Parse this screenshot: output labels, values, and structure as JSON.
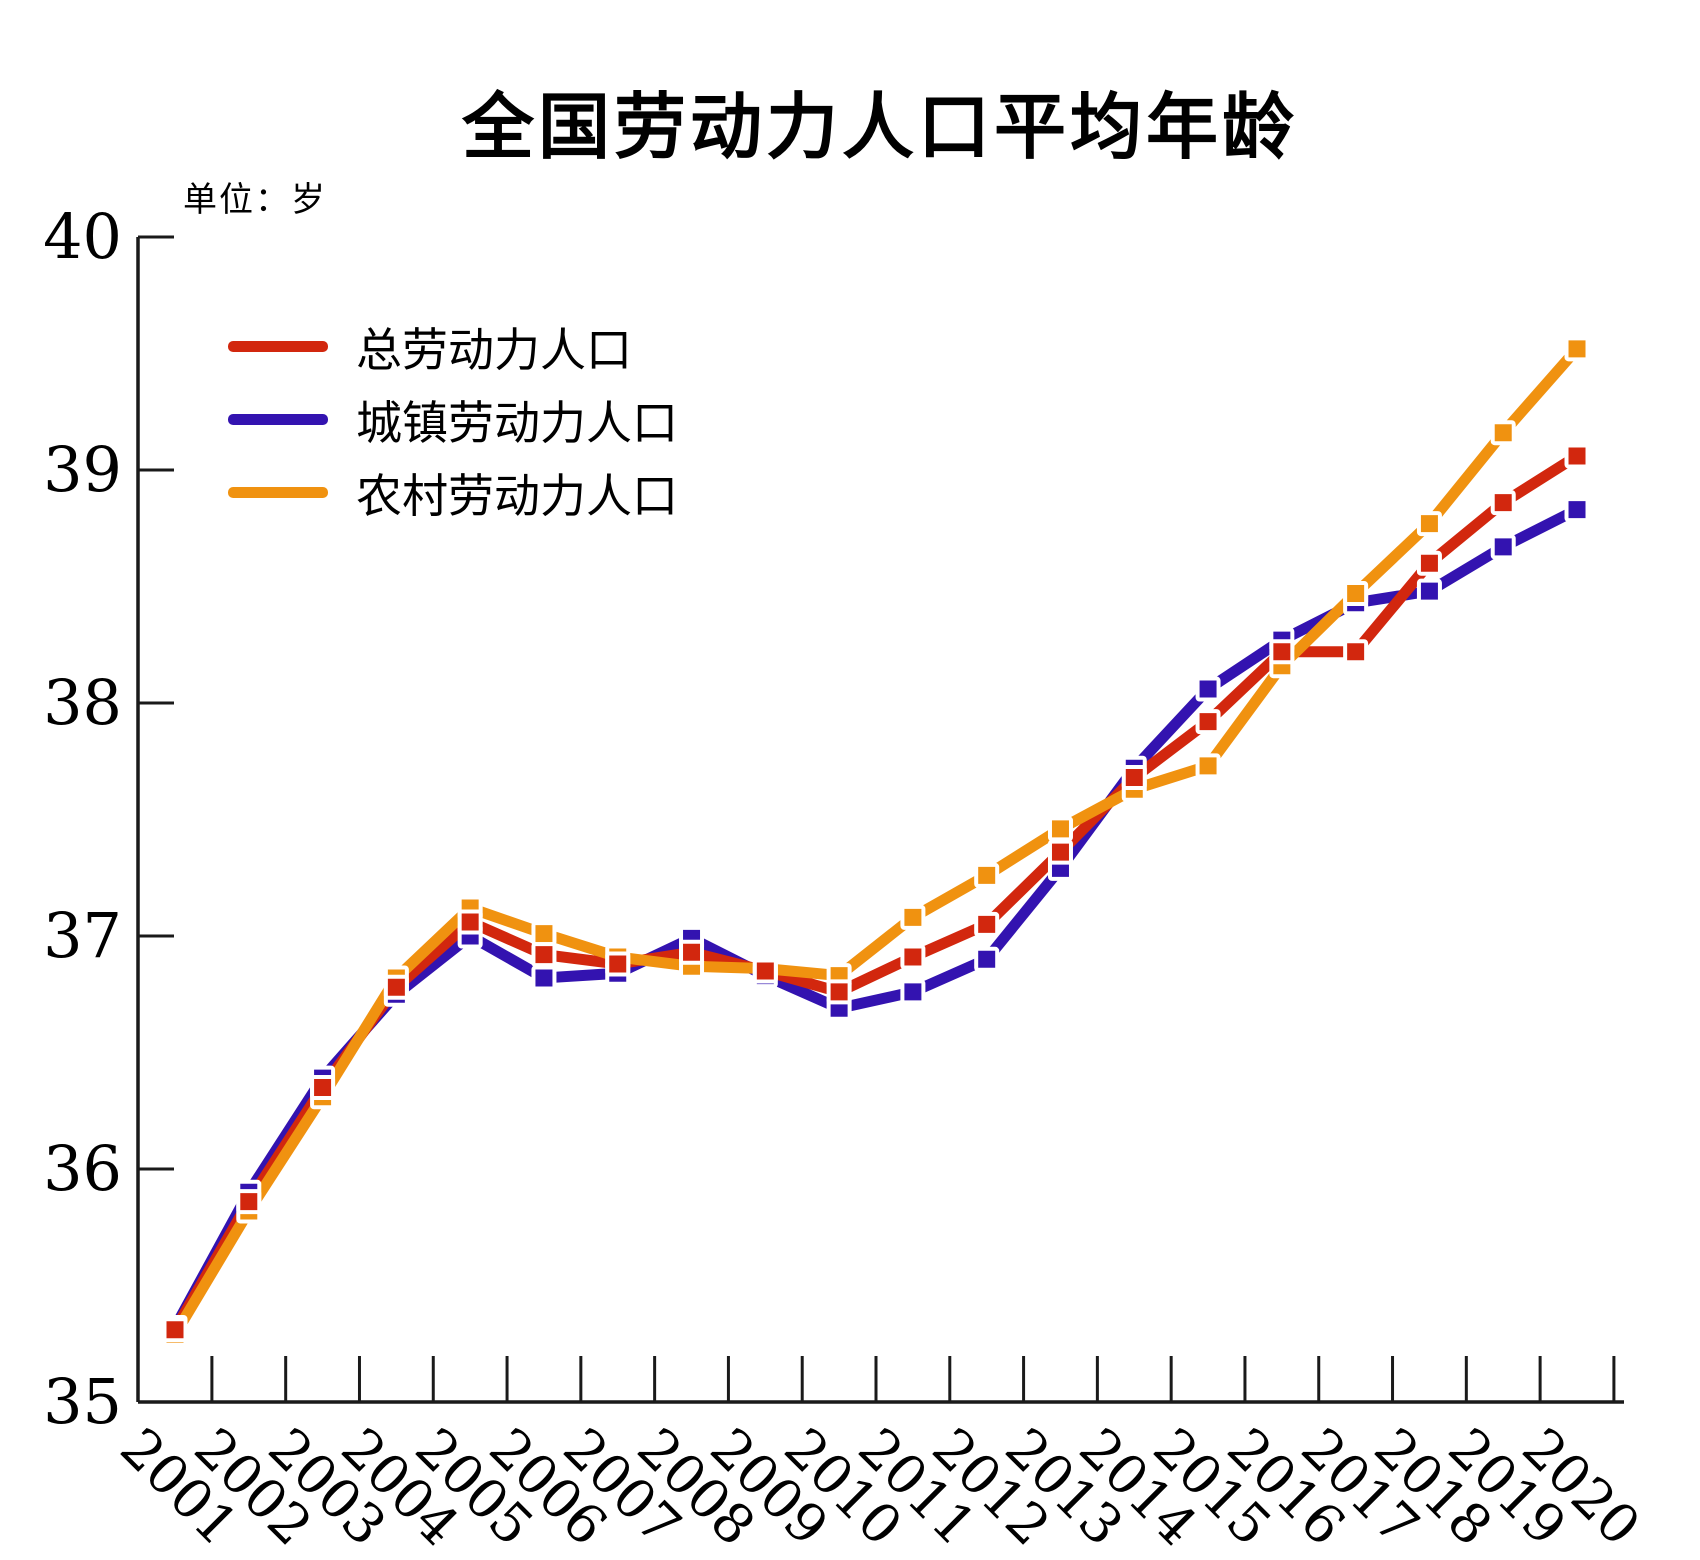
{
  "title": "全国劳动力人口平均年龄",
  "unit_label": "单位：岁",
  "legend": [
    {
      "label": "总劳动力人口",
      "color": "#d2270e"
    },
    {
      "label": "城镇劳动力人口",
      "color": "#3313b0"
    },
    {
      "label": "农村劳动力人口",
      "color": "#f09210"
    }
  ],
  "chart_data": {
    "type": "line",
    "title": "全国劳动力人口平均年龄",
    "xlabel": "",
    "ylabel": "单位：岁",
    "x": [
      2001,
      2002,
      2003,
      2004,
      2005,
      2006,
      2007,
      2008,
      2009,
      2010,
      2011,
      2012,
      2013,
      2014,
      2015,
      2016,
      2017,
      2018,
      2019,
      2020
    ],
    "ylim": [
      35,
      40
    ],
    "y_ticks": [
      35,
      36,
      37,
      38,
      39,
      40
    ],
    "grid": false,
    "legend_position": "upper-left-inside",
    "marker": "square",
    "series": [
      {
        "name": "总劳动力人口",
        "color": "#d2270e",
        "values": [
          35.31,
          35.86,
          36.35,
          36.78,
          37.06,
          36.92,
          36.88,
          36.93,
          36.85,
          36.76,
          36.91,
          37.05,
          37.36,
          37.68,
          37.92,
          38.22,
          38.22,
          38.6,
          38.86,
          39.06
        ]
      },
      {
        "name": "城镇劳动力人口",
        "color": "#3313b0",
        "values": [
          35.32,
          35.9,
          36.39,
          36.75,
          37.0,
          36.82,
          36.84,
          36.99,
          36.83,
          36.69,
          36.76,
          36.9,
          37.29,
          37.72,
          38.06,
          38.27,
          38.43,
          38.48,
          38.67,
          38.83
        ]
      },
      {
        "name": "农村劳动力人口",
        "color": "#f09210",
        "values": [
          35.29,
          35.82,
          36.31,
          36.82,
          37.12,
          37.01,
          36.91,
          36.87,
          36.86,
          36.83,
          37.08,
          37.26,
          37.46,
          37.63,
          37.73,
          38.16,
          38.47,
          38.77,
          39.16,
          39.52
        ]
      }
    ]
  }
}
